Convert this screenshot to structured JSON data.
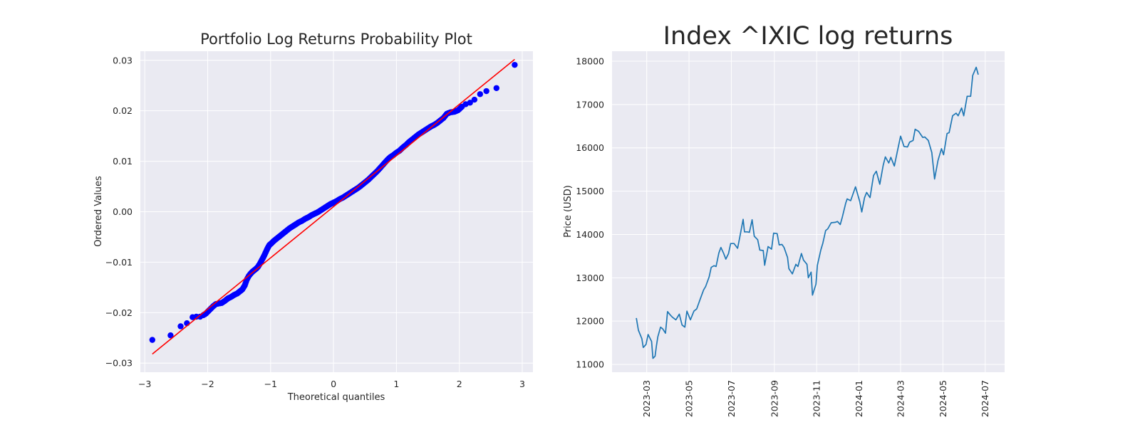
{
  "chart_data": [
    {
      "type": "scatter",
      "title": "Portfolio Log Returns Probability Plot",
      "xlabel": "Theoretical quantiles",
      "ylabel": "Ordered Values",
      "xlim": [
        -3.07,
        3.17
      ],
      "ylim": [
        -0.0318,
        0.0318
      ],
      "xticks": [
        -3,
        -2,
        -1,
        0,
        1,
        2,
        3
      ],
      "xtick_labels": [
        "−3",
        "−2",
        "−1",
        "0",
        "1",
        "2",
        "3"
      ],
      "yticks": [
        -0.03,
        -0.02,
        -0.01,
        0.0,
        0.01,
        0.02,
        0.03
      ],
      "ytick_labels": [
        "−0.03",
        "−0.02",
        "−0.01",
        "0.00",
        "0.01",
        "0.02",
        "0.03"
      ],
      "grid": true,
      "fit_line": {
        "x": [
          -2.88,
          2.88
        ],
        "y": [
          -0.0282,
          0.0302
        ],
        "color": "#ff0000"
      },
      "series": [
        {
          "color": "#0000ff",
          "x": [
            -2.88,
            -2.59,
            -2.43,
            -2.33,
            -2.24,
            -2.18,
            -2.12,
            -2.07,
            -2.03,
            -1.99,
            -1.95,
            -1.91,
            -1.87,
            -1.83,
            -1.78,
            -1.73,
            -1.68,
            -1.63,
            -1.58,
            -1.53,
            -1.49,
            -1.45,
            -1.41,
            -1.38,
            -1.35,
            -1.32,
            -1.29,
            -1.26,
            -1.23,
            -1.2,
            -1.17,
            -1.14,
            -1.11,
            -1.08,
            -1.05,
            -1.02,
            -0.99,
            -0.95,
            -0.9,
            -0.85,
            -0.8,
            -0.75,
            -0.7,
            -0.65,
            -0.6,
            -0.55,
            -0.5,
            -0.45,
            -0.4,
            -0.35,
            -0.3,
            -0.25,
            -0.2,
            -0.15,
            -0.1,
            -0.05,
            0.0,
            0.05,
            0.1,
            0.15,
            0.2,
            0.25,
            0.3,
            0.35,
            0.4,
            0.45,
            0.5,
            0.55,
            0.6,
            0.65,
            0.7,
            0.75,
            0.8,
            0.85,
            0.9,
            0.95,
            1.0,
            1.05,
            1.1,
            1.15,
            1.2,
            1.25,
            1.3,
            1.35,
            1.4,
            1.45,
            1.5,
            1.55,
            1.6,
            1.65,
            1.7,
            1.75,
            1.8,
            1.86,
            1.92,
            1.98,
            2.04,
            2.1,
            2.17,
            2.24,
            2.33,
            2.43,
            2.59,
            2.88
          ],
          "y": [
            -0.0254,
            -0.0245,
            -0.0227,
            -0.0221,
            -0.0209,
            -0.0208,
            -0.0208,
            -0.0205,
            -0.0202,
            -0.0197,
            -0.0192,
            -0.0187,
            -0.0183,
            -0.0182,
            -0.0181,
            -0.0177,
            -0.0172,
            -0.0169,
            -0.0165,
            -0.0162,
            -0.0158,
            -0.0154,
            -0.0146,
            -0.0135,
            -0.0128,
            -0.0123,
            -0.0119,
            -0.0116,
            -0.0113,
            -0.0109,
            -0.0103,
            -0.0096,
            -0.0089,
            -0.0081,
            -0.0073,
            -0.0066,
            -0.0063,
            -0.0058,
            -0.0053,
            -0.0048,
            -0.0043,
            -0.0038,
            -0.0033,
            -0.0029,
            -0.0025,
            -0.0021,
            -0.0018,
            -0.0014,
            -0.0011,
            -0.0007,
            -0.0004,
            -0.0001,
            0.0003,
            0.0007,
            0.0011,
            0.0015,
            0.0018,
            0.0021,
            0.0025,
            0.0028,
            0.0032,
            0.0036,
            0.004,
            0.0044,
            0.0048,
            0.0053,
            0.0058,
            0.0063,
            0.0069,
            0.0075,
            0.0081,
            0.0088,
            0.0095,
            0.0102,
            0.0108,
            0.0112,
            0.0117,
            0.0121,
            0.0127,
            0.0132,
            0.0138,
            0.0143,
            0.0148,
            0.0153,
            0.0157,
            0.0161,
            0.0165,
            0.0169,
            0.0172,
            0.0176,
            0.0181,
            0.0186,
            0.0194,
            0.0197,
            0.0198,
            0.0201,
            0.0208,
            0.0213,
            0.0216,
            0.0222,
            0.0233,
            0.0239,
            0.0245,
            0.0291
          ]
        }
      ]
    },
    {
      "type": "line",
      "title": "Index ^IXIC log returns",
      "xlabel": "",
      "ylabel": "Price (USD)",
      "xlim": [
        "2023-01-10",
        "2024-07-29"
      ],
      "ylim": [
        10820,
        18230
      ],
      "xticks": [
        "2023-03-01",
        "2023-05-01",
        "2023-07-01",
        "2023-09-01",
        "2023-11-01",
        "2024-01-01",
        "2024-03-01",
        "2024-05-01",
        "2024-07-01"
      ],
      "xtick_labels": [
        "2023-03",
        "2023-05",
        "2023-07",
        "2023-09",
        "2023-11",
        "2024-01",
        "2024-03",
        "2024-05",
        "2024-07"
      ],
      "yticks": [
        11000,
        12000,
        13000,
        14000,
        15000,
        16000,
        17000,
        18000
      ],
      "ytick_labels": [
        "11000",
        "12000",
        "13000",
        "14000",
        "15000",
        "16000",
        "17000",
        "18000"
      ],
      "grid": true,
      "series": [
        {
          "color": "#1f77b4",
          "x": [
            "2023-02-14",
            "2023-02-17",
            "2023-02-22",
            "2023-02-24",
            "2023-02-28",
            "2023-03-03",
            "2023-03-08",
            "2023-03-10",
            "2023-03-13",
            "2023-03-15",
            "2023-03-17",
            "2023-03-21",
            "2023-03-24",
            "2023-03-28",
            "2023-03-31",
            "2023-04-04",
            "2023-04-07",
            "2023-04-12",
            "2023-04-17",
            "2023-04-21",
            "2023-04-25",
            "2023-04-28",
            "2023-05-03",
            "2023-05-08",
            "2023-05-12",
            "2023-05-17",
            "2023-05-22",
            "2023-05-25",
            "2023-05-30",
            "2023-06-02",
            "2023-06-06",
            "2023-06-09",
            "2023-06-13",
            "2023-06-16",
            "2023-06-20",
            "2023-06-23",
            "2023-06-27",
            "2023-06-30",
            "2023-07-05",
            "2023-07-10",
            "2023-07-13",
            "2023-07-18",
            "2023-07-20",
            "2023-07-24",
            "2023-07-27",
            "2023-07-31",
            "2023-08-03",
            "2023-08-08",
            "2023-08-11",
            "2023-08-16",
            "2023-08-18",
            "2023-08-23",
            "2023-08-28",
            "2023-08-31",
            "2023-09-05",
            "2023-09-08",
            "2023-09-12",
            "2023-09-15",
            "2023-09-20",
            "2023-09-22",
            "2023-09-27",
            "2023-10-02",
            "2023-10-05",
            "2023-10-10",
            "2023-10-13",
            "2023-10-18",
            "2023-10-20",
            "2023-10-24",
            "2023-10-26",
            "2023-10-31",
            "2023-11-02",
            "2023-11-07",
            "2023-11-10",
            "2023-11-14",
            "2023-11-17",
            "2023-11-22",
            "2023-11-28",
            "2023-12-01",
            "2023-12-05",
            "2023-12-08",
            "2023-12-13",
            "2023-12-15",
            "2023-12-20",
            "2023-12-27",
            "2024-01-02",
            "2024-01-05",
            "2024-01-09",
            "2024-01-12",
            "2024-01-17",
            "2024-01-22",
            "2024-01-26",
            "2024-01-31",
            "2024-02-05",
            "2024-02-08",
            "2024-02-13",
            "2024-02-16",
            "2024-02-21",
            "2024-02-26",
            "2024-03-01",
            "2024-03-06",
            "2024-03-11",
            "2024-03-14",
            "2024-03-19",
            "2024-03-22",
            "2024-03-27",
            "2024-04-02",
            "2024-04-05",
            "2024-04-10",
            "2024-04-15",
            "2024-04-19",
            "2024-04-24",
            "2024-04-29",
            "2024-05-02",
            "2024-05-07",
            "2024-05-10",
            "2024-05-15",
            "2024-05-20",
            "2024-05-23",
            "2024-05-28",
            "2024-05-31",
            "2024-06-05",
            "2024-06-10",
            "2024-06-13",
            "2024-06-18",
            "2024-06-21"
          ],
          "y": [
            12070,
            11790,
            11590,
            11390,
            11460,
            11690,
            11530,
            11140,
            11190,
            11430,
            11640,
            11860,
            11820,
            11720,
            12220,
            12140,
            12090,
            12030,
            12160,
            11910,
            11860,
            12230,
            12030,
            12230,
            12280,
            12500,
            12720,
            12800,
            13020,
            13240,
            13280,
            13260,
            13570,
            13700,
            13560,
            13430,
            13560,
            13790,
            13790,
            13680,
            13920,
            14350,
            14060,
            14060,
            14050,
            14340,
            13960,
            13880,
            13640,
            13630,
            13290,
            13720,
            13660,
            14030,
            14020,
            13760,
            13770,
            13700,
            13470,
            13210,
            13090,
            13310,
            13260,
            13560,
            13410,
            13310,
            13000,
            13130,
            12600,
            12850,
            13290,
            13640,
            13800,
            14090,
            14130,
            14270,
            14280,
            14300,
            14230,
            14400,
            14730,
            14820,
            14780,
            15100,
            14770,
            14520,
            14850,
            14970,
            14850,
            15360,
            15460,
            15160,
            15600,
            15790,
            15650,
            15780,
            15580,
            15970,
            16270,
            16030,
            16020,
            16130,
            16170,
            16430,
            16380,
            16240,
            16250,
            16170,
            15890,
            15280,
            15710,
            15980,
            15840,
            16330,
            16350,
            16740,
            16800,
            16740,
            16920,
            16740,
            17190,
            17190,
            17670,
            17860,
            17690
          ]
        }
      ]
    }
  ]
}
